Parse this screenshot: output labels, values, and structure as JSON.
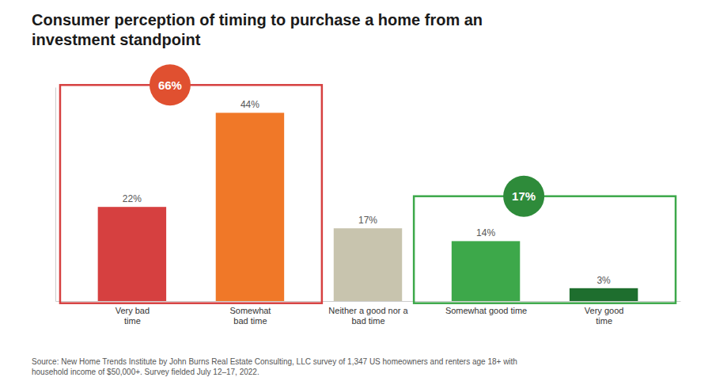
{
  "chart_data": {
    "type": "bar",
    "title": "Consumer perception of timing to purchase a home from an\ninvestment standpoint",
    "categories": [
      "Very bad\ntime",
      "Somewhat\nbad time",
      "Neither a good nor a\nbad time",
      "Somewhat good time",
      "Very good\ntime"
    ],
    "values": [
      22,
      44,
      17,
      14,
      3
    ],
    "value_labels": [
      "22%",
      "44%",
      "17%",
      "14%",
      "3%"
    ],
    "colors": [
      "#d64040",
      "#f07828",
      "#c8c4ae",
      "#3da84a",
      "#1e6e2e"
    ],
    "data_labels": true,
    "ylim": [
      0,
      50
    ],
    "tick_labels": "x",
    "annotations": [
      {
        "text": "66%",
        "color": "#e05030",
        "box_color": "#d64040",
        "categories": [
          "Very bad\ntime",
          "Somewhat\nbad time"
        ]
      },
      {
        "text": "17%",
        "color": "#2e8b3a",
        "box_color": "#3da84a",
        "categories": [
          "Somewhat good time",
          "Very good\ntime"
        ]
      }
    ],
    "source": "Source: New Home Trends Institute by John Burns Real Estate Consulting, LLC survey of 1,347 US homeowners and renters age 18+ with\nhousehold income of $50,000+. Survey fielded July 12–17, 2022."
  }
}
